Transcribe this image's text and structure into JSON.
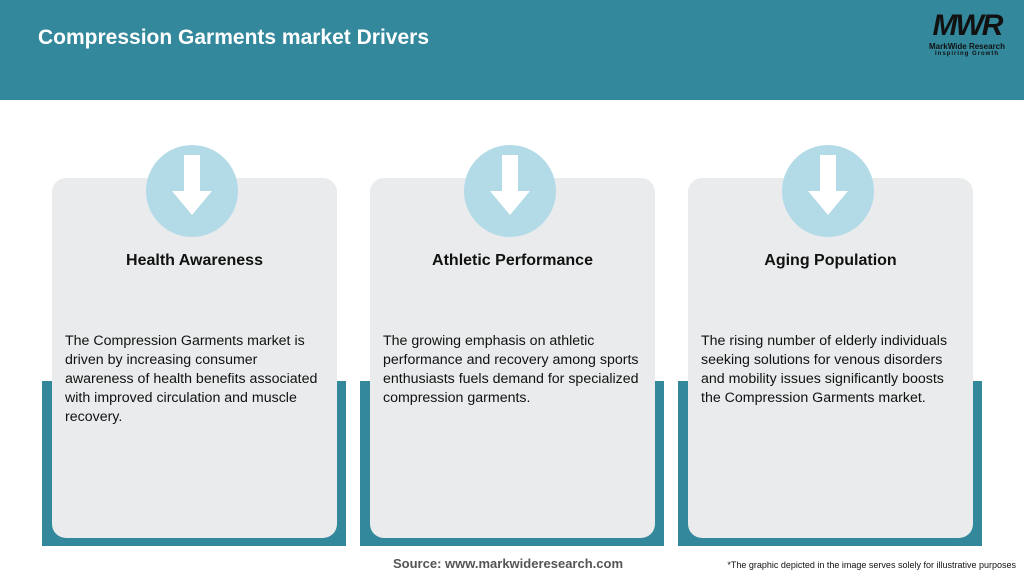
{
  "header": {
    "title": "Compression Garments market Drivers",
    "logo": {
      "mark": "MWR",
      "name": "MarkWide Research",
      "tagline": "Inspiring Growth"
    }
  },
  "cards": [
    {
      "title": "Health Awareness",
      "body": "The Compression Garments market is driven by increasing consumer awareness of health benefits associated with improved circulation and muscle recovery.",
      "icon": "arrow-down-icon"
    },
    {
      "title": "Athletic Performance",
      "body": "The growing emphasis on athletic performance and recovery among sports enthusiasts fuels demand for specialized compression garments.",
      "icon": "arrow-down-icon"
    },
    {
      "title": "Aging Population",
      "body": "The rising number of elderly individuals seeking solutions for venous disorders and mobility issues significantly boosts the Compression Garments market.",
      "icon": "arrow-down-icon"
    }
  ],
  "footer": {
    "source": "Source: www.markwideresearch.com",
    "note": "*The graphic depicted in the image serves solely for illustrative purposes"
  },
  "colors": {
    "teal": "#33889c",
    "card": "#e9ebec",
    "circle": "#b3dbe7"
  }
}
